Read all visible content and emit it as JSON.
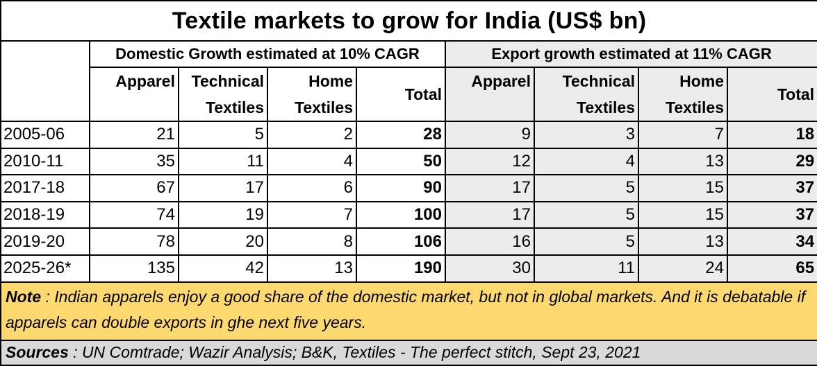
{
  "chart_data": {
    "type": "table",
    "title": "Textile markets to grow for India (US$ bn)",
    "groups": [
      {
        "label": "Domestic Growth estimated at 10% CAGR",
        "columns": [
          "Apparel",
          "Technical Textiles",
          "Home Textiles",
          "Total"
        ]
      },
      {
        "label": "Export growth estimated at 11% CAGR",
        "columns": [
          "Apparel",
          "Technical Textiles",
          "Home Textiles",
          "Total"
        ]
      }
    ],
    "rows": [
      {
        "year": "2005-06",
        "domestic": [
          "21",
          "5",
          "2",
          "28"
        ],
        "export": [
          "9",
          "3",
          "7",
          "18"
        ]
      },
      {
        "year": "2010-11",
        "domestic": [
          "35",
          "11",
          "4",
          "50"
        ],
        "export": [
          "12",
          "4",
          "13",
          "29"
        ]
      },
      {
        "year": "2017-18",
        "domestic": [
          "67",
          "17",
          "6",
          "90"
        ],
        "export": [
          "17",
          "5",
          "15",
          "37"
        ]
      },
      {
        "year": "2018-19",
        "domestic": [
          "74",
          "19",
          "7",
          "100"
        ],
        "export": [
          "17",
          "5",
          "15",
          "37"
        ]
      },
      {
        "year": "2019-20",
        "domestic": [
          "78",
          "20",
          "8",
          "106"
        ],
        "export": [
          "16",
          "5",
          "13",
          "34"
        ]
      },
      {
        "year": "2025-26*",
        "domestic": [
          "135",
          "42",
          "13",
          "190"
        ],
        "export": [
          "30",
          "11",
          "24",
          "65"
        ]
      }
    ]
  },
  "header": {
    "domestic": {
      "apparel": "Apparel",
      "technical_1": "Technical",
      "technical_2": "Textiles",
      "home_1": "Home",
      "home_2": "Textiles",
      "total": "Total"
    },
    "export": {
      "apparel": "Apparel",
      "technical_1": "Technical",
      "technical_2": "Textiles",
      "home_1": "Home",
      "home_2": "Textiles",
      "total": "Total"
    }
  },
  "note": {
    "label": "Note",
    "separator": " : ",
    "text": "Indian apparels enjoy a good share of the domestic market, but not in global markets. And it is debatable if apparels can double exports in ghe next five years."
  },
  "sources": {
    "label": "Sources",
    "separator": " : ",
    "text": "UN Comtrade; Wazir Analysis; B&K, Textiles - The perfect stitch, Sept 23, 2021"
  },
  "colors": {
    "export_shade": "#ececec",
    "note_background": "#fdd970",
    "sources_background": "#d9d9d9"
  }
}
